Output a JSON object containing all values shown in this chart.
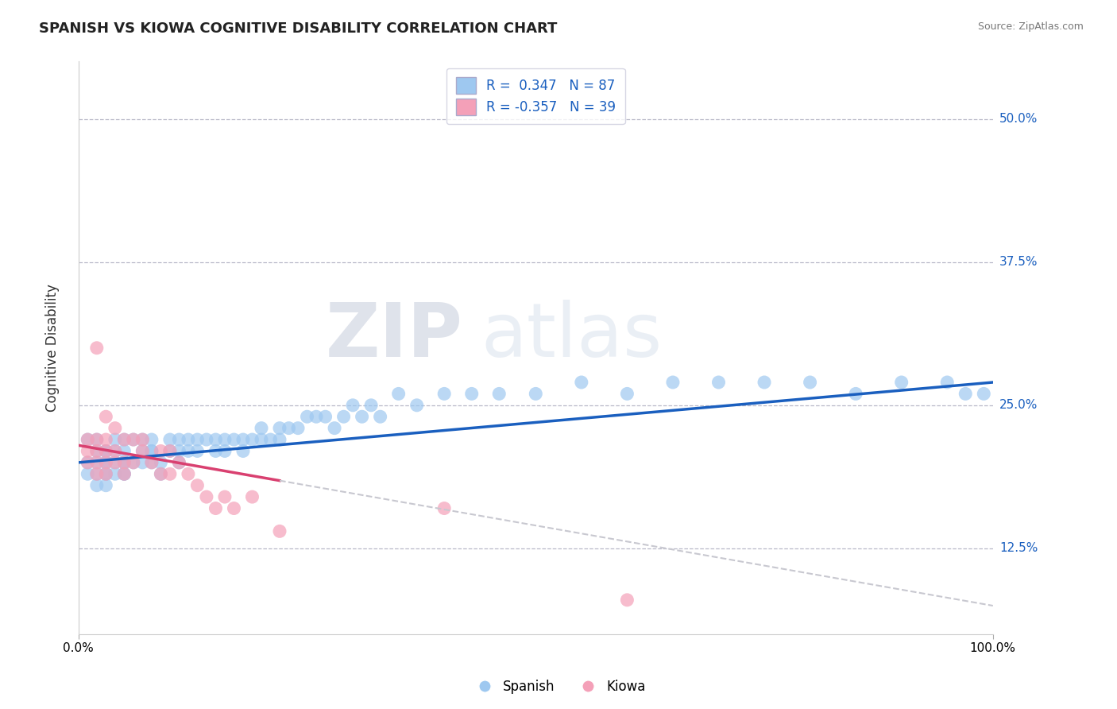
{
  "title": "SPANISH VS KIOWA COGNITIVE DISABILITY CORRELATION CHART",
  "source": "Source: ZipAtlas.com",
  "ylabel": "Cognitive Disability",
  "xlim": [
    0,
    100
  ],
  "ylim": [
    5,
    55
  ],
  "yticks": [
    12.5,
    25.0,
    37.5,
    50.0
  ],
  "ytick_labels": [
    "12.5%",
    "25.0%",
    "37.5%",
    "50.0%"
  ],
  "xtick_labels": [
    "0.0%",
    "100.0%"
  ],
  "spanish_color": "#9EC8F0",
  "kiowa_color": "#F4A0B8",
  "spanish_line_color": "#1A5FBF",
  "kiowa_line_color": "#D94070",
  "kiowa_line_dashed_color": "#C8C8D0",
  "R_spanish": 0.347,
  "N_spanish": 87,
  "R_kiowa": -0.357,
  "N_kiowa": 39,
  "watermark_zip": "ZIP",
  "watermark_atlas": "atlas",
  "background_color": "#ffffff",
  "spanish_x": [
    1,
    1,
    1,
    2,
    2,
    2,
    2,
    2,
    3,
    3,
    3,
    3,
    3,
    3,
    3,
    4,
    4,
    4,
    4,
    5,
    5,
    5,
    5,
    5,
    5,
    6,
    6,
    7,
    7,
    7,
    8,
    8,
    8,
    8,
    9,
    9,
    10,
    10,
    11,
    11,
    11,
    12,
    12,
    13,
    13,
    14,
    15,
    15,
    16,
    16,
    17,
    18,
    18,
    19,
    20,
    20,
    21,
    22,
    22,
    23,
    24,
    25,
    26,
    27,
    28,
    29,
    30,
    31,
    32,
    33,
    35,
    37,
    40,
    43,
    46,
    50,
    55,
    60,
    65,
    70,
    75,
    80,
    85,
    90,
    95,
    97,
    99
  ],
  "spanish_y": [
    20,
    19,
    22,
    18,
    21,
    20,
    19,
    22,
    21,
    20,
    19,
    21,
    20,
    18,
    19,
    20,
    22,
    21,
    19,
    20,
    19,
    21,
    20,
    19,
    22,
    20,
    22,
    21,
    22,
    20,
    21,
    20,
    22,
    21,
    19,
    20,
    22,
    21,
    22,
    21,
    20,
    22,
    21,
    22,
    21,
    22,
    22,
    21,
    22,
    21,
    22,
    22,
    21,
    22,
    23,
    22,
    22,
    23,
    22,
    23,
    23,
    24,
    24,
    24,
    23,
    24,
    25,
    24,
    25,
    24,
    26,
    25,
    26,
    26,
    26,
    26,
    27,
    26,
    27,
    27,
    27,
    27,
    26,
    27,
    27,
    26,
    26
  ],
  "kiowa_x": [
    1,
    1,
    1,
    2,
    2,
    2,
    2,
    2,
    3,
    3,
    3,
    3,
    3,
    4,
    4,
    4,
    5,
    5,
    5,
    6,
    6,
    7,
    7,
    8,
    9,
    9,
    10,
    10,
    11,
    12,
    13,
    14,
    15,
    16,
    17,
    19,
    22,
    40,
    60
  ],
  "kiowa_y": [
    22,
    21,
    20,
    30,
    22,
    21,
    20,
    19,
    24,
    22,
    21,
    20,
    19,
    23,
    21,
    20,
    19,
    22,
    20,
    22,
    20,
    22,
    21,
    20,
    21,
    19,
    21,
    19,
    20,
    19,
    18,
    17,
    16,
    17,
    16,
    17,
    14,
    16,
    8
  ],
  "kiowa_solid_end_x": 22,
  "legend_R_color": "#1A5FBF",
  "legend_N_color": "#1A5FBF",
  "legend_label_color": "#333333"
}
